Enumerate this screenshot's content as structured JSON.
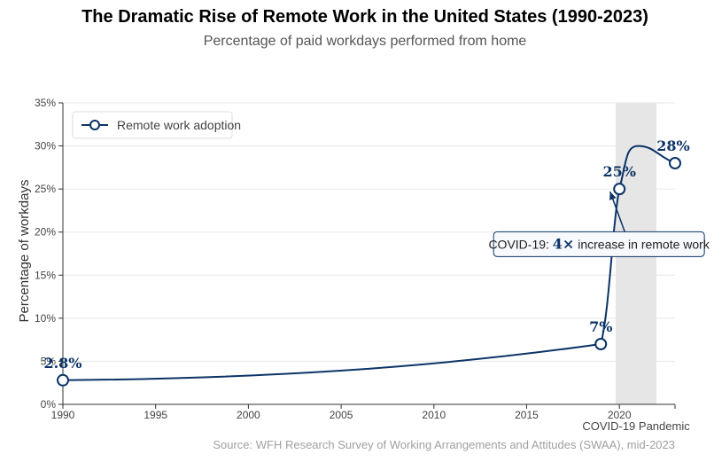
{
  "title": "The Dramatic Rise of Remote Work in the United States (1990-2023)",
  "subtitle": "Percentage of paid workdays performed from home",
  "source": "Source: WFH Research Survey of Working Arrangements and Attitudes (SWAA), mid-2023",
  "colors": {
    "series": "#0b3366",
    "shade": "#e6e6e6",
    "grid": "#e6e6e6"
  },
  "chart_data": {
    "type": "line",
    "ylabel": "Percentage of workdays",
    "xlim": [
      1990,
      2023
    ],
    "ylim": [
      0,
      35
    ],
    "xticks": [
      1990,
      1995,
      2000,
      2005,
      2010,
      2015,
      2020
    ],
    "yticks": [
      0,
      5,
      10,
      15,
      20,
      25,
      30,
      35
    ],
    "ytick_labels": [
      "0%",
      "5%",
      "10%",
      "15%",
      "20%",
      "25%",
      "30%",
      "35%"
    ],
    "legend": {
      "position": "top-left",
      "label": "Remote work adoption"
    },
    "series": [
      {
        "name": "Remote work adoption",
        "points": [
          {
            "x": 1990,
            "y": 2.8,
            "label": "2.8%"
          },
          {
            "x": 2019,
            "y": 7,
            "label": "7%"
          },
          {
            "x": 2020,
            "y": 25,
            "label": "25%"
          },
          {
            "x": 2023,
            "y": 28,
            "label": "28%"
          }
        ],
        "curve_peak": {
          "x": 2021,
          "y": 30
        }
      }
    ],
    "shaded_region": {
      "x_start": 2019.8,
      "x_end": 2022,
      "label": "COVID-19 Pandemic"
    },
    "annotation": {
      "text_prefix": "COVID-19: ",
      "text_emph": "4×",
      "text_suffix": " increase in remote work",
      "box_center": {
        "x": 2018.9,
        "y": 18.6
      },
      "arrow_from": {
        "x": 2020.6,
        "y": 18.2
      },
      "arrow_to": {
        "x": 2019.5,
        "y": 24.7
      }
    }
  }
}
